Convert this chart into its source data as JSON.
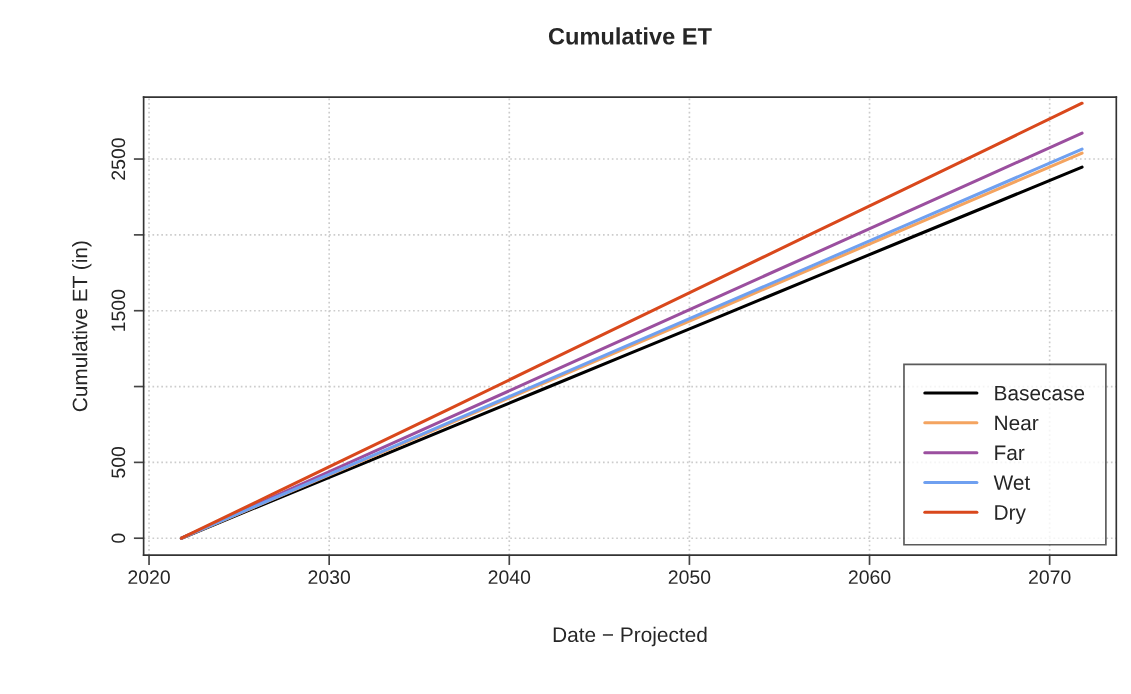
{
  "chart_data": {
    "type": "line",
    "title": "Cumulative ET",
    "xlabel": "Date − Projected",
    "ylabel": "Cumulative ET (in)",
    "x": [
      2021.8,
      2026.8,
      2031.8,
      2036.8,
      2041.8,
      2046.8,
      2051.8,
      2056.8,
      2061.8,
      2066.8,
      2071.8
    ],
    "series": [
      {
        "name": "Basecase",
        "color": "#000000",
        "values": [
          0,
          245,
          489,
          734,
          979,
          1224,
          1468,
          1713,
          1958,
          2202,
          2447
        ]
      },
      {
        "name": "Near",
        "color": "#f4a460",
        "values": [
          0,
          254,
          508,
          762,
          1016,
          1270,
          1523,
          1777,
          2031,
          2285,
          2539
        ]
      },
      {
        "name": "Far",
        "color": "#9b4f9f",
        "values": [
          0,
          267,
          534,
          801,
          1068,
          1336,
          1603,
          1870,
          2137,
          2404,
          2671
        ]
      },
      {
        "name": "Wet",
        "color": "#6fa0f0",
        "values": [
          0,
          257,
          513,
          770,
          1026,
          1283,
          1540,
          1796,
          2053,
          2309,
          2566
        ]
      },
      {
        "name": "Dry",
        "color": "#d9481c",
        "values": [
          0,
          287,
          574,
          860,
          1147,
          1434,
          1721,
          2008,
          2294,
          2581,
          2868
        ]
      }
    ],
    "xlim": [
      2019.7,
      2073.7
    ],
    "xticks": [
      2020,
      2030,
      2040,
      2050,
      2060,
      2070
    ],
    "ylim": [
      -112,
      2908
    ],
    "yticks": [
      0,
      500,
      {
        "value": 1000,
        "label": null
      },
      1500,
      {
        "value": 2000,
        "label": null
      },
      2500
    ],
    "grid": true,
    "legend": "bottom right",
    "line_style": "solid",
    "marker": "none"
  }
}
